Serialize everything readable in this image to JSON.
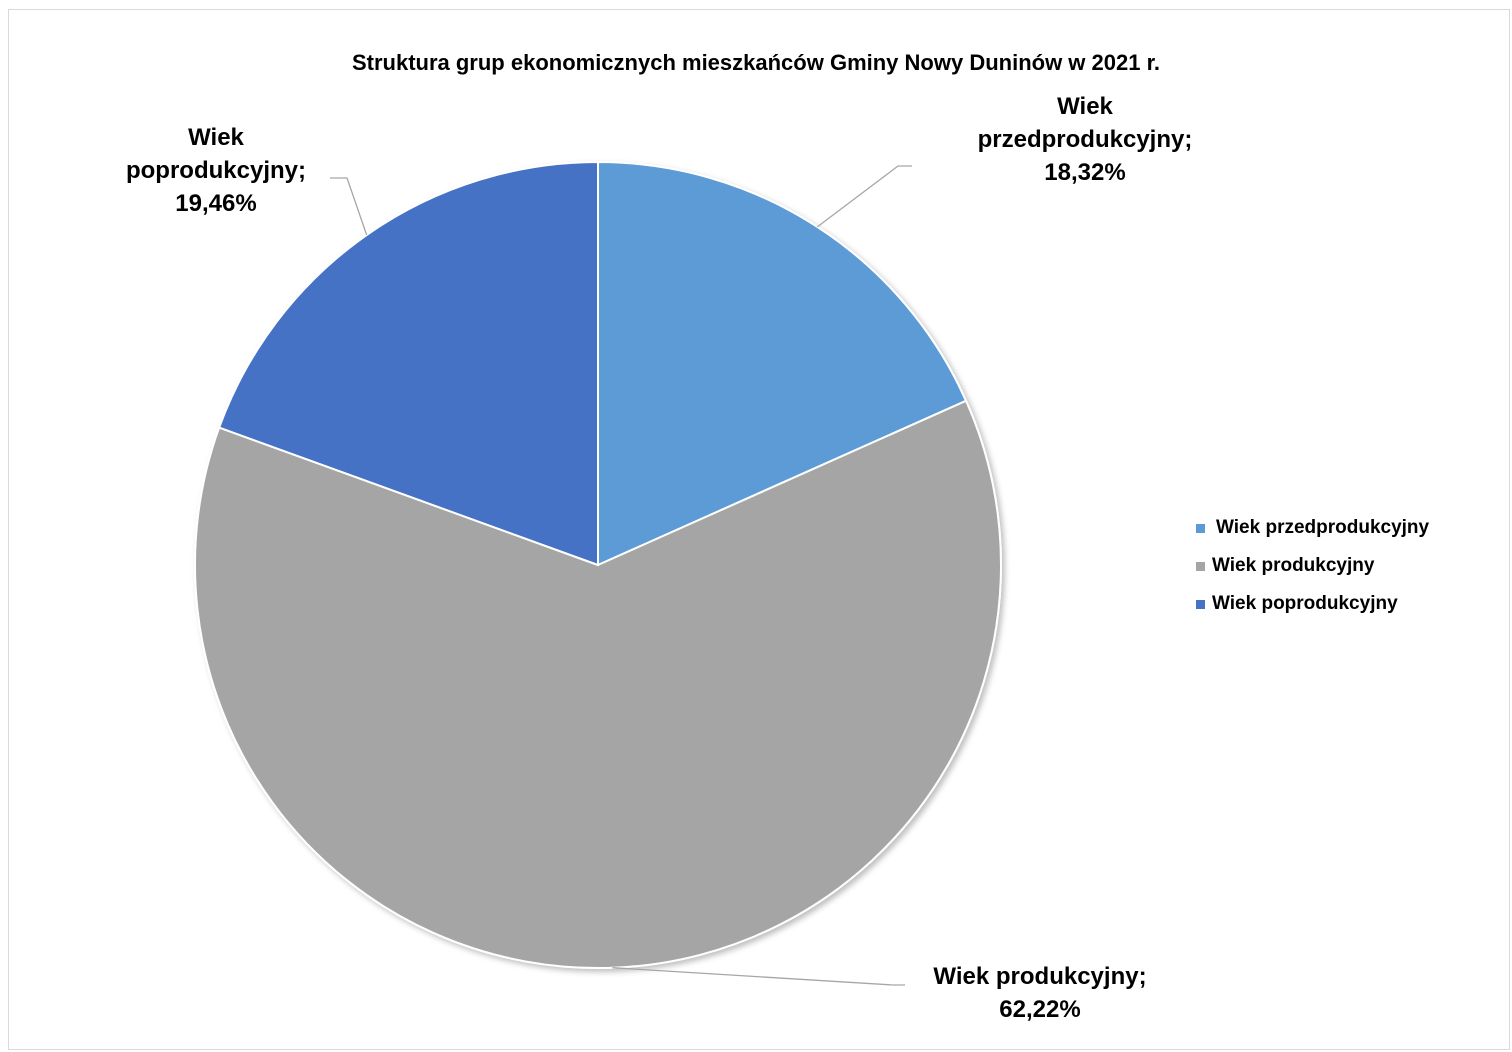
{
  "chart_data": {
    "type": "pie",
    "title": "Struktura grup ekonomicznych mieszkańców Gminy Nowy Duninów w 2021 r.",
    "slices": [
      {
        "name": "Wiek przedprodukcyjny",
        "value": 18.32,
        "label": "18,32%",
        "color": "#5b9bd5"
      },
      {
        "name": "Wiek produkcyjny",
        "value": 62.22,
        "label": "62,22%",
        "color": "#a5a5a5"
      },
      {
        "name": "Wiek poprodukcyjny",
        "value": 19.46,
        "label": "19,46%",
        "color": "#4472c4"
      }
    ],
    "data_labels": [
      {
        "lines": [
          "Wiek",
          "przedprodukcyjny;",
          "18,32%"
        ]
      },
      {
        "lines": [
          "Wiek produkcyjny;",
          "62,22%"
        ]
      },
      {
        "lines": [
          "Wiek",
          "poprodukcyjny;",
          "19,46%"
        ]
      }
    ],
    "legend_position": "right"
  }
}
